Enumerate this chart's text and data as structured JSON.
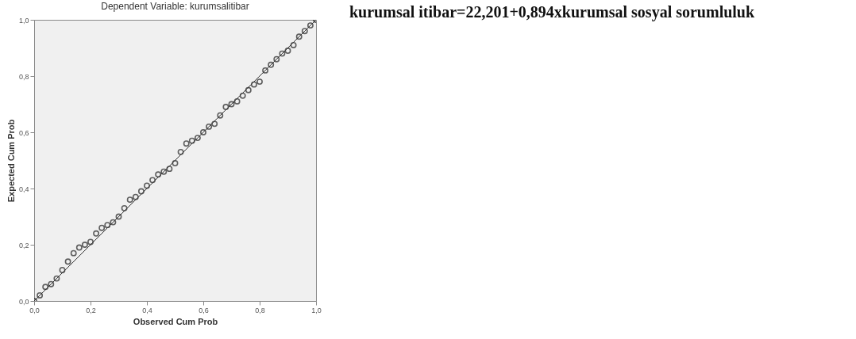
{
  "chart_data": {
    "type": "scatter",
    "title": "Dependent Variable: kurumsalitibar",
    "xlabel": "Observed Cum Prob",
    "ylabel": "Expected Cum Prob",
    "annotations": [
      "kurumsal itibar=22,201+0,894xkurumsal sosyal sorumluluk"
    ],
    "xlim": [
      0,
      1
    ],
    "ylim": [
      0,
      1
    ],
    "xticks": [
      {
        "value": 0,
        "label": "0,0"
      },
      {
        "value": 0.2,
        "label": "0,2"
      },
      {
        "value": 0.4,
        "label": "0,4"
      },
      {
        "value": 0.6,
        "label": "0,6"
      },
      {
        "value": 0.8,
        "label": "0,8"
      },
      {
        "value": 1,
        "label": "1,0"
      }
    ],
    "yticks": [
      {
        "value": 0,
        "label": "0,0"
      },
      {
        "value": 0.2,
        "label": "0,2"
      },
      {
        "value": 0.4,
        "label": "0,4"
      },
      {
        "value": 0.6,
        "label": "0,6"
      },
      {
        "value": 0.8,
        "label": "0,8"
      },
      {
        "value": 1,
        "label": "1,0"
      }
    ],
    "grid": false,
    "series": [
      {
        "marker": "circle",
        "color": "#222222",
        "x": [
          0,
          0.02,
          0.04,
          0.06,
          0.08,
          0.1,
          0.12,
          0.14,
          0.16,
          0.18,
          0.2,
          0.22,
          0.24,
          0.26,
          0.28,
          0.3,
          0.32,
          0.34,
          0.36,
          0.38,
          0.4,
          0.42,
          0.44,
          0.46,
          0.48,
          0.5,
          0.52,
          0.54,
          0.56,
          0.58,
          0.6,
          0.62,
          0.64,
          0.66,
          0.68,
          0.7,
          0.72,
          0.74,
          0.76,
          0.78,
          0.8,
          0.82,
          0.84,
          0.86,
          0.88,
          0.9,
          0.92,
          0.94,
          0.96,
          0.98,
          1
        ],
        "values": [
          0,
          0.02,
          0.05,
          0.06,
          0.08,
          0.11,
          0.14,
          0.17,
          0.19,
          0.2,
          0.21,
          0.24,
          0.26,
          0.27,
          0.28,
          0.3,
          0.33,
          0.36,
          0.37,
          0.39,
          0.41,
          0.43,
          0.45,
          0.46,
          0.47,
          0.49,
          0.53,
          0.56,
          0.57,
          0.58,
          0.6,
          0.62,
          0.63,
          0.66,
          0.69,
          0.7,
          0.71,
          0.73,
          0.75,
          0.77,
          0.78,
          0.82,
          0.84,
          0.86,
          0.88,
          0.89,
          0.91,
          0.94,
          0.96,
          0.98,
          1
        ]
      },
      {
        "type": "line",
        "color": "#333333",
        "x": [
          0,
          1
        ],
        "values": [
          0,
          1
        ]
      }
    ]
  }
}
